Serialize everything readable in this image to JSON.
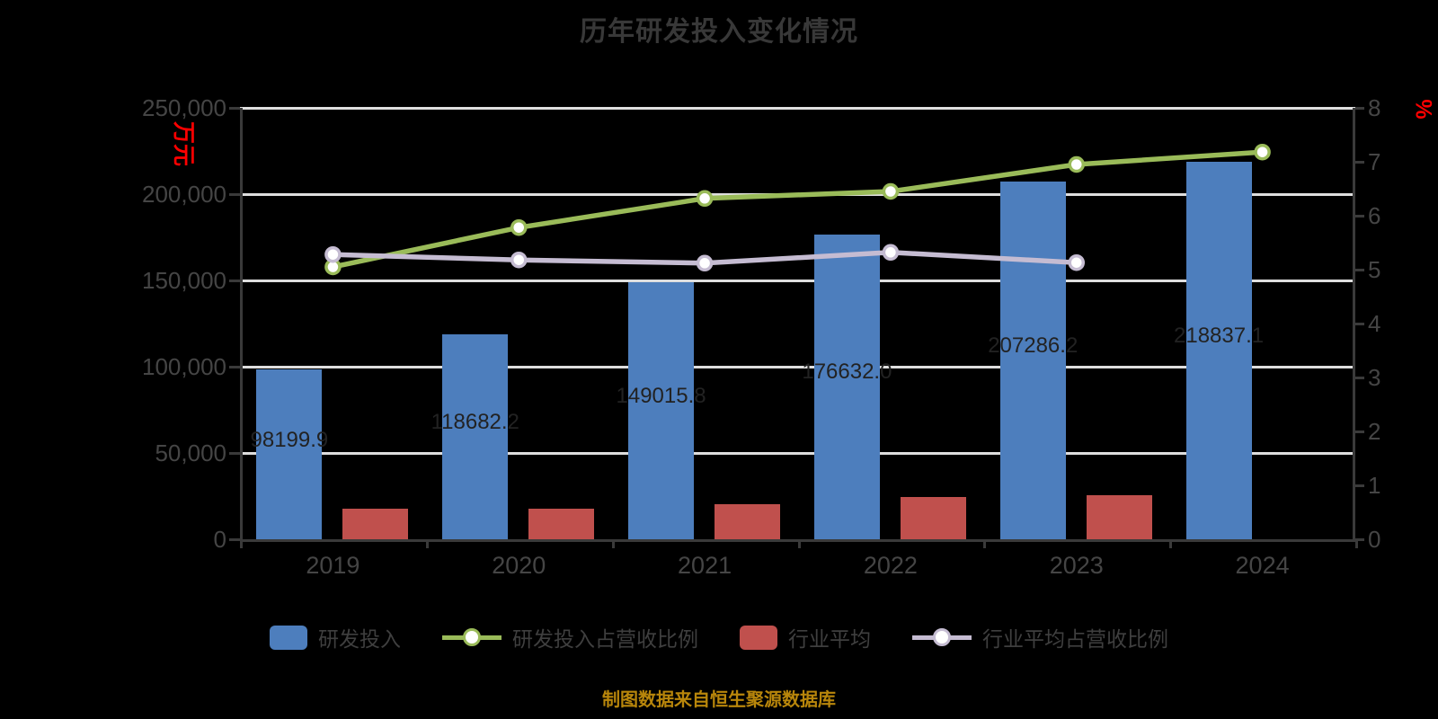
{
  "title": "历年研发投入变化情况",
  "footer": "制图数据来自恒生聚源数据库",
  "colors": {
    "background": "#000000",
    "title_text": "#383838",
    "axis_text": "#454545",
    "axis_line": "#3a3a3a",
    "gridline": "#dedede",
    "bar_blue": "#4d7ebd",
    "bar_red": "#c0504d",
    "line_green": "#9abb59",
    "line_lavender": "#c5bcd2",
    "unit_text_red": "#ff0000",
    "bar_value_text": "#222222",
    "footer_text": "#b8860b"
  },
  "chart_data": {
    "type": "bar+line combo",
    "title": "历年研发投入变化情况",
    "categories": [
      "2019",
      "2020",
      "2021",
      "2022",
      "2023",
      "2024"
    ],
    "series": [
      {
        "name": "研发投入",
        "type": "bar",
        "axis": "left",
        "color": "#4d7ebd",
        "values": [
          98199.9,
          118682.2,
          149015.8,
          176632.0,
          207286.2,
          218837.1
        ],
        "value_labels": [
          "98199.9",
          "118682.2",
          "149015.8",
          "176632.0",
          "207286.2",
          "218837.1"
        ]
      },
      {
        "name": "研发投入占营收比例",
        "type": "line",
        "axis": "right",
        "color": "#9abb59",
        "values": [
          5.05,
          5.78,
          6.32,
          6.45,
          6.95,
          7.18
        ]
      },
      {
        "name": "行业平均",
        "type": "bar",
        "axis": "left",
        "color": "#c0504d",
        "values": [
          17700,
          17700,
          20300,
          24500,
          25700,
          null
        ]
      },
      {
        "name": "行业平均占营收比例",
        "type": "line",
        "axis": "right",
        "color": "#c5bcd2",
        "values": [
          5.28,
          5.18,
          5.12,
          5.32,
          5.13,
          null
        ]
      }
    ],
    "left_axis": {
      "unit": "万元",
      "min": 0,
      "max": 250000,
      "tick_labels": [
        "0",
        "50,000",
        "100,000",
        "150,000",
        "200,000",
        "250,000"
      ]
    },
    "right_axis": {
      "unit": "%",
      "min": 0,
      "max": 8,
      "tick_labels": [
        "0",
        "1",
        "2",
        "3",
        "4",
        "5",
        "6",
        "7",
        "8"
      ]
    },
    "grid": "horizontal only",
    "legend_position": "bottom"
  },
  "legend": {
    "items": [
      {
        "label": "研发投入",
        "swatch": "blue-rect"
      },
      {
        "label": "研发投入占营收比例",
        "swatch": "green-line-marker"
      },
      {
        "label": "行业平均",
        "swatch": "red-rect"
      },
      {
        "label": "行业平均占营收比例",
        "swatch": "lavender-line-marker"
      }
    ]
  }
}
